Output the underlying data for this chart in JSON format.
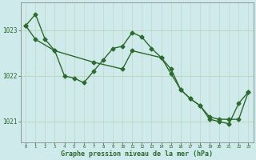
{
  "line1_x": [
    0,
    1,
    2,
    3,
    4,
    5,
    6,
    7,
    8,
    9,
    10,
    11,
    12,
    13,
    14,
    15,
    16,
    17,
    18,
    19,
    20,
    21,
    22,
    23
  ],
  "line1_y": [
    1023.1,
    1023.35,
    1022.8,
    1022.55,
    1022.0,
    1021.95,
    1021.85,
    1022.1,
    1022.35,
    1022.6,
    1022.65,
    1022.95,
    1022.85,
    1022.6,
    1022.4,
    1022.05,
    1021.7,
    1021.5,
    1021.35,
    1021.05,
    1021.0,
    1020.95,
    1021.4,
    1021.65
  ],
  "line2_x": [
    0,
    1,
    3,
    7,
    10,
    11,
    14,
    15,
    16,
    17,
    18,
    19,
    20,
    21,
    22,
    23
  ],
  "line2_y": [
    1023.1,
    1022.8,
    1022.55,
    1022.3,
    1022.15,
    1022.55,
    1022.4,
    1022.15,
    1021.7,
    1021.5,
    1021.35,
    1021.1,
    1021.05,
    1021.05,
    1021.05,
    1021.65
  ],
  "line_color": "#2d6a2d",
  "bg_color": "#ceeaea",
  "grid_color_v": "#c8d8c8",
  "grid_color_h": "#b8d4b8",
  "xlabel": "Graphe pression niveau de la mer (hPa)",
  "yticks": [
    1021,
    1022,
    1023
  ],
  "xticks": [
    0,
    1,
    2,
    3,
    4,
    5,
    6,
    7,
    8,
    9,
    10,
    11,
    12,
    13,
    14,
    15,
    16,
    17,
    18,
    19,
    20,
    21,
    22,
    23
  ],
  "ylim": [
    1020.55,
    1023.6
  ],
  "xlim": [
    -0.5,
    23.5
  ],
  "marker": "D",
  "markersize": 2.5,
  "linewidth": 1.0
}
